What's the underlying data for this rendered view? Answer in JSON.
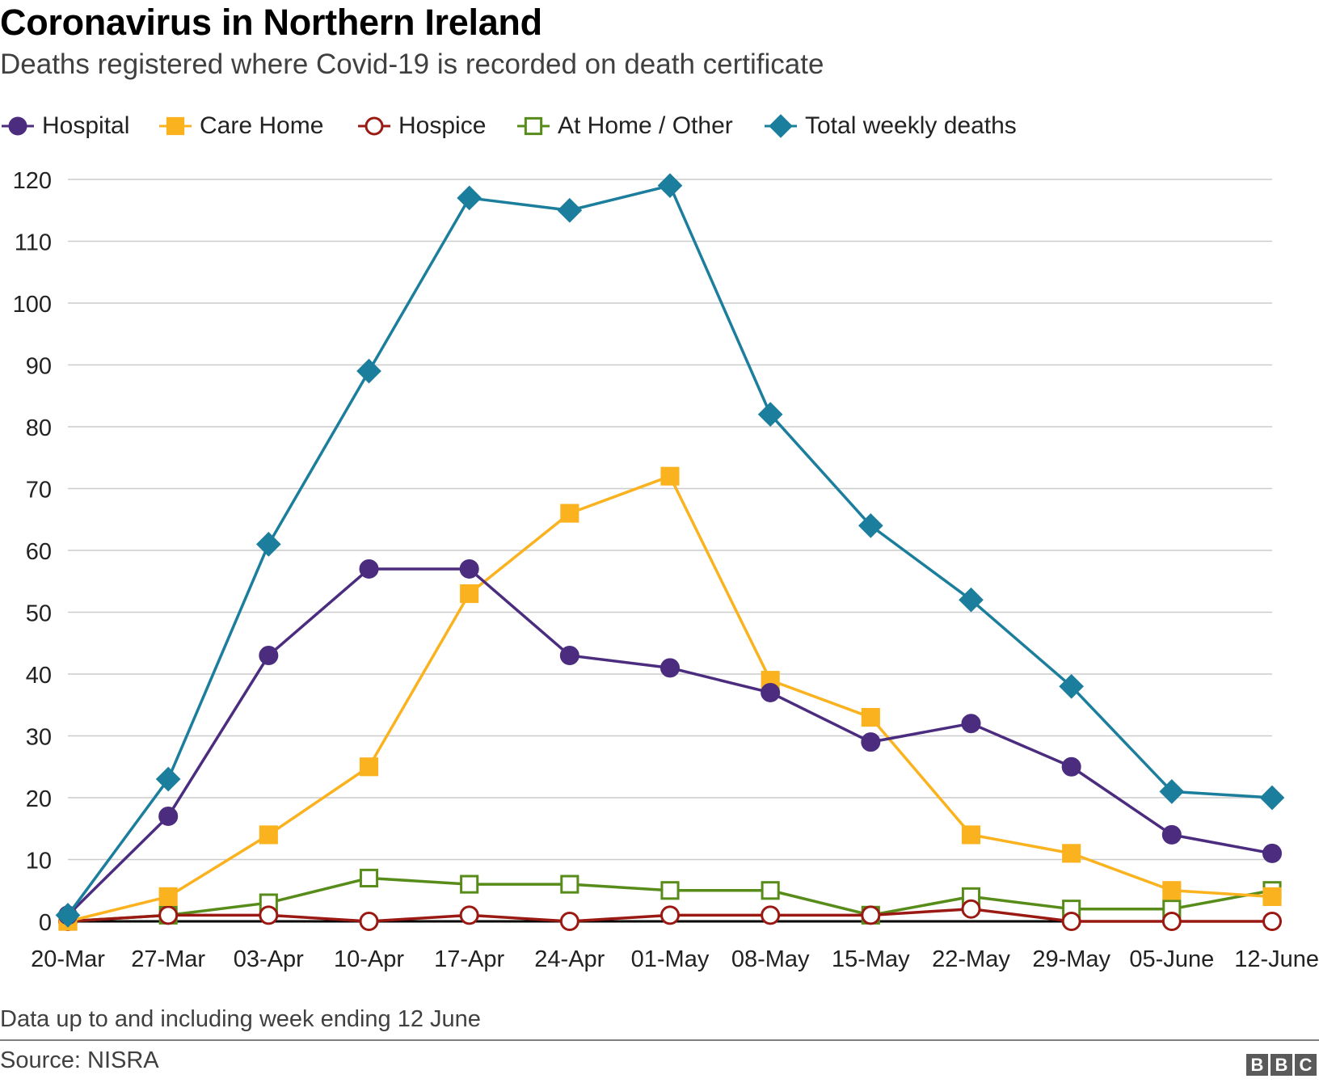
{
  "header": {
    "title": "Coronavirus in Northern Ireland",
    "subtitle": "Deaths registered where Covid-19 is recorded on death certificate"
  },
  "footer": {
    "note": "Data up to and including week ending 12 June",
    "source": "Source: NISRA",
    "logo_text": "BBC"
  },
  "chart_data": {
    "type": "line",
    "title": "Coronavirus in Northern Ireland",
    "subtitle": "Deaths registered where Covid-19 is recorded on death certificate",
    "x": [
      "20-Mar",
      "27-Mar",
      "03-Apr",
      "10-Apr",
      "17-Apr",
      "24-Apr",
      "01-May",
      "08-May",
      "15-May",
      "22-May",
      "29-May",
      "05-June",
      "12-June"
    ],
    "ylim": [
      0,
      120
    ],
    "yticks": [
      0,
      10,
      20,
      30,
      40,
      50,
      60,
      70,
      80,
      90,
      100,
      110,
      120
    ],
    "grid": true,
    "legend_position": "top",
    "series": [
      {
        "name": "Hospital",
        "color": "#4b2c7f",
        "marker": "circle",
        "marker_fill": "filled",
        "values": [
          1,
          17,
          43,
          57,
          57,
          43,
          41,
          37,
          29,
          32,
          25,
          14,
          11
        ]
      },
      {
        "name": "Care Home",
        "color": "#fbb21f",
        "marker": "square",
        "marker_fill": "filled",
        "values": [
          0,
          4,
          14,
          25,
          53,
          66,
          72,
          39,
          33,
          14,
          11,
          5,
          4
        ]
      },
      {
        "name": "Hospice",
        "color": "#9a1a13",
        "marker": "circle",
        "marker_fill": "hollow",
        "values": [
          0,
          1,
          1,
          0,
          1,
          0,
          1,
          1,
          1,
          2,
          0,
          0,
          0
        ]
      },
      {
        "name": "At Home / Other",
        "color": "#588c1a",
        "marker": "square",
        "marker_fill": "hollow",
        "values": [
          0,
          1,
          3,
          7,
          6,
          6,
          5,
          5,
          1,
          4,
          2,
          2,
          5
        ]
      },
      {
        "name": "Total weekly deaths",
        "color": "#1b7e9c",
        "marker": "diamond",
        "marker_fill": "filled",
        "values": [
          1,
          23,
          61,
          89,
          117,
          115,
          119,
          82,
          64,
          52,
          38,
          21,
          20
        ]
      }
    ]
  }
}
